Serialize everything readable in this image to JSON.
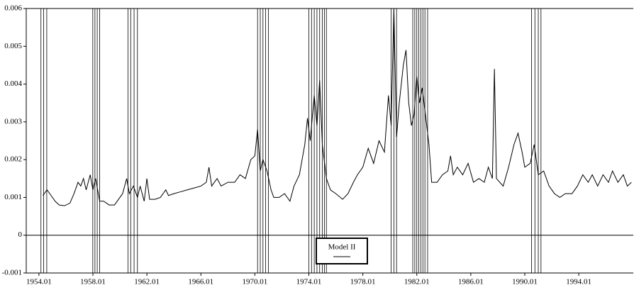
{
  "chart_data": {
    "type": "line",
    "x": [
      1954.3,
      1954.6,
      1954.9,
      1955.2,
      1955.5,
      1955.9,
      1956.3,
      1956.6,
      1956.9,
      1957.1,
      1957.3,
      1957.5,
      1957.8,
      1958.0,
      1958.2,
      1958.5,
      1958.8,
      1959.2,
      1959.6,
      1959.9,
      1960.2,
      1960.5,
      1960.7,
      1961.0,
      1961.3,
      1961.5,
      1961.8,
      1962.0,
      1962.2,
      1962.6,
      1963.0,
      1963.4,
      1963.6,
      1964.0,
      1964.5,
      1965.0,
      1965.5,
      1966.0,
      1966.4,
      1966.6,
      1966.8,
      1967.2,
      1967.5,
      1968.0,
      1968.5,
      1968.9,
      1969.3,
      1969.7,
      1970.0,
      1970.2,
      1970.4,
      1970.6,
      1970.9,
      1971.2,
      1971.4,
      1971.8,
      1972.2,
      1972.6,
      1972.9,
      1973.3,
      1973.7,
      1973.9,
      1974.1,
      1974.4,
      1974.6,
      1974.8,
      1975.0,
      1975.3,
      1975.6,
      1976.0,
      1976.5,
      1976.9,
      1977.3,
      1977.6,
      1978.0,
      1978.4,
      1978.8,
      1979.2,
      1979.6,
      1979.9,
      1980.1,
      1980.3,
      1980.5,
      1980.7,
      1981.0,
      1981.2,
      1981.4,
      1981.6,
      1981.8,
      1982.0,
      1982.2,
      1982.4,
      1982.7,
      1982.9,
      1983.1,
      1983.5,
      1983.9,
      1984.3,
      1984.5,
      1984.7,
      1985.0,
      1985.4,
      1985.8,
      1986.2,
      1986.6,
      1987.0,
      1987.3,
      1987.6,
      1987.75,
      1987.9,
      1988.4,
      1988.8,
      1989.2,
      1989.5,
      1989.8,
      1990.0,
      1990.4,
      1990.7,
      1991.0,
      1991.4,
      1991.8,
      1992.2,
      1992.6,
      1993.0,
      1993.5,
      1993.9,
      1994.3,
      1994.7,
      1995.0,
      1995.4,
      1995.8,
      1996.2,
      1996.5,
      1996.9,
      1997.3,
      1997.6,
      1997.9
    ],
    "series": [
      {
        "name": "Model II",
        "color": "#000000",
        "values": [
          0.00105,
          0.0012,
          0.00105,
          0.0009,
          0.0008,
          0.00078,
          0.00085,
          0.0011,
          0.0014,
          0.0013,
          0.0015,
          0.0012,
          0.0016,
          0.0012,
          0.0015,
          0.0009,
          0.0009,
          0.0008,
          0.0008,
          0.00095,
          0.0011,
          0.0015,
          0.0011,
          0.0013,
          0.001,
          0.0013,
          0.0009,
          0.0015,
          0.00095,
          0.00095,
          0.001,
          0.0012,
          0.00105,
          0.0011,
          0.00115,
          0.0012,
          0.00125,
          0.0013,
          0.0014,
          0.0018,
          0.0013,
          0.0015,
          0.0013,
          0.0014,
          0.0014,
          0.0016,
          0.0015,
          0.002,
          0.0021,
          0.0028,
          0.0017,
          0.002,
          0.0017,
          0.0012,
          0.001,
          0.001,
          0.0011,
          0.0009,
          0.0013,
          0.0016,
          0.0024,
          0.0031,
          0.0025,
          0.0037,
          0.0029,
          0.0041,
          0.0024,
          0.0015,
          0.0012,
          0.0011,
          0.00095,
          0.0011,
          0.0014,
          0.0016,
          0.0018,
          0.0023,
          0.0019,
          0.0025,
          0.0022,
          0.0037,
          0.0029,
          0.006,
          0.0026,
          0.0035,
          0.0045,
          0.0049,
          0.0035,
          0.0029,
          0.0032,
          0.0042,
          0.0035,
          0.0039,
          0.003,
          0.0024,
          0.0014,
          0.0014,
          0.0016,
          0.0017,
          0.0021,
          0.0016,
          0.0018,
          0.0016,
          0.0019,
          0.0014,
          0.0015,
          0.0014,
          0.0018,
          0.0015,
          0.0044,
          0.0015,
          0.0013,
          0.0018,
          0.0024,
          0.0027,
          0.0022,
          0.0018,
          0.0019,
          0.0024,
          0.0016,
          0.0017,
          0.0013,
          0.0011,
          0.001,
          0.0011,
          0.0011,
          0.0013,
          0.0016,
          0.0014,
          0.0016,
          0.0013,
          0.0016,
          0.0014,
          0.0017,
          0.0014,
          0.0016,
          0.0013,
          0.0014
        ]
      }
    ],
    "recession_lines": [
      1954.15,
      1954.35,
      1954.58,
      1957.99,
      1958.15,
      1958.32,
      1958.5,
      1960.6,
      1960.8,
      1961.05,
      1961.3,
      1970.2,
      1970.4,
      1970.6,
      1970.8,
      1971.0,
      1974.0,
      1974.2,
      1974.4,
      1974.6,
      1974.8,
      1975.0,
      1975.15,
      1975.3,
      1980.1,
      1980.3,
      1980.5,
      1981.7,
      1981.85,
      1982.0,
      1982.15,
      1982.3,
      1982.45,
      1982.6,
      1982.8,
      1990.5,
      1990.75,
      1991.0,
      1991.2
    ],
    "xlim": [
      1953.06,
      1998.04
    ],
    "xticks": [
      {
        "value": 1954,
        "label": "1954.01"
      },
      {
        "value": 1958,
        "label": "1958.01"
      },
      {
        "value": 1962,
        "label": "1962.01"
      },
      {
        "value": 1966,
        "label": "1966.01"
      },
      {
        "value": 1970,
        "label": "1970.01"
      },
      {
        "value": 1974,
        "label": "1974.01"
      },
      {
        "value": 1978,
        "label": "1978.01"
      },
      {
        "value": 1982,
        "label": "1982.01"
      },
      {
        "value": 1986,
        "label": "1986.01"
      },
      {
        "value": 1990,
        "label": "1990.01"
      },
      {
        "value": 1994,
        "label": "1994.01"
      }
    ],
    "ylim": [
      -0.001,
      0.006
    ],
    "yticks": [
      -0.001,
      0,
      0.001,
      0.002,
      0.003,
      0.004,
      0.005,
      0.006
    ]
  }
}
